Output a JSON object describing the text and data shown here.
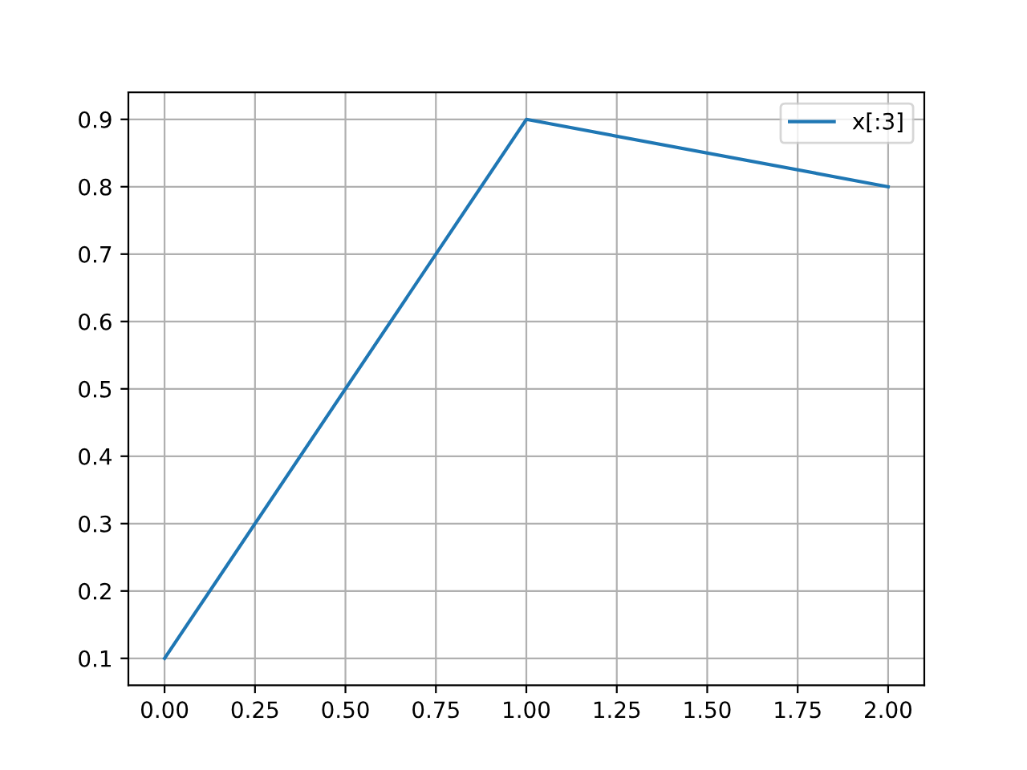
{
  "chart_data": {
    "type": "line",
    "x": [
      0,
      1,
      2
    ],
    "series": [
      {
        "name": "x[:3]",
        "color": "#1f77b4",
        "values": [
          0.1,
          0.9,
          0.8
        ]
      }
    ],
    "xlim": [
      -0.1,
      2.1
    ],
    "xticks": [
      {
        "value": 0,
        "label": "0.00"
      },
      {
        "value": 0.25,
        "label": "0.25"
      },
      {
        "value": 0.5,
        "label": "0.50"
      },
      {
        "value": 0.75,
        "label": "0.75"
      },
      {
        "value": 1,
        "label": "1.00"
      },
      {
        "value": 1.25,
        "label": "1.25"
      },
      {
        "value": 1.5,
        "label": "1.50"
      },
      {
        "value": 1.75,
        "label": "1.75"
      },
      {
        "value": 2,
        "label": "2.00"
      }
    ],
    "ylim": [
      0.06,
      0.94
    ],
    "yticks": [
      0.1,
      0.2,
      0.3,
      0.4,
      0.5,
      0.6,
      0.7,
      0.8,
      0.9
    ],
    "grid": true,
    "legend": "top right",
    "marker": "none",
    "line_style": "solid"
  }
}
